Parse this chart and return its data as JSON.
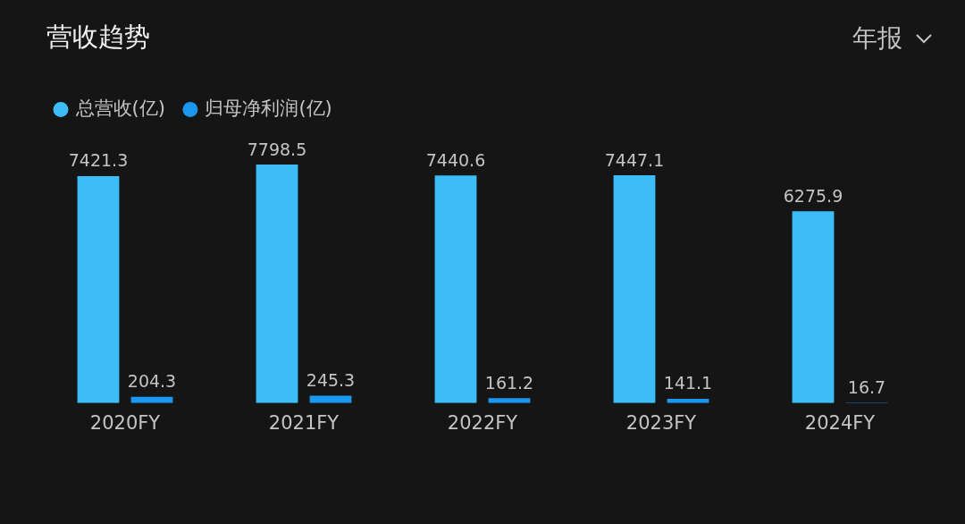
{
  "chart_data": {
    "type": "bar",
    "title": "营收趋势",
    "annotations": [
      "年报"
    ],
    "categories": [
      "2020FY",
      "2021FY",
      "2022FY",
      "2023FY",
      "2024FY"
    ],
    "series": [
      {
        "name": "总营收(亿)",
        "color": "#3dbdf7",
        "values": [
          7421.3,
          7798.5,
          7440.6,
          7447.1,
          6275.9
        ]
      },
      {
        "name": "归母净利润(亿)",
        "color": "#1a98f0",
        "values": [
          204.3,
          245.3,
          161.2,
          141.1,
          16.7
        ]
      }
    ],
    "data_labels": true,
    "legend": "top left"
  }
}
